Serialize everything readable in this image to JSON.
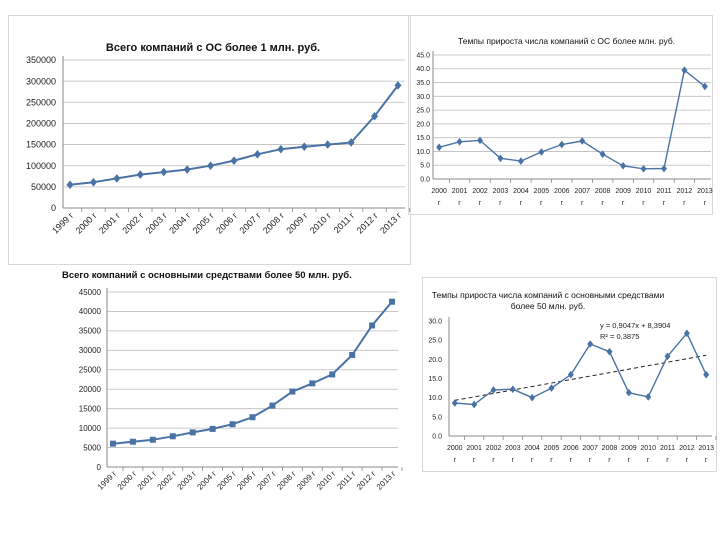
{
  "colors": {
    "line": "#4a73a5",
    "grid": "#bdbdbd",
    "axis": "#888888",
    "trend": "#222222"
  },
  "chart_data": [
    {
      "id": "c1",
      "type": "line",
      "title": "Всего компаний с ОС более 1 млн. руб.",
      "categories": [
        "1999 г",
        "2000 г",
        "2001 г",
        "2002 г",
        "2003 г",
        "2004 г",
        "2005 г",
        "2006 г",
        "2007 г",
        "2008 г",
        "2009 г",
        "2010 г",
        "2011 г",
        "2012 г",
        "2013 г"
      ],
      "values": [
        55000,
        61000,
        70000,
        79000,
        85000,
        91000,
        100000,
        112000,
        127000,
        139000,
        145000,
        150000,
        155000,
        217000,
        290000
      ],
      "ylim": [
        0,
        350000
      ],
      "yticks": [
        "0",
        "50000",
        "100000",
        "150000",
        "200000",
        "250000",
        "300000",
        "350000"
      ],
      "grid": true,
      "marker": "diamond"
    },
    {
      "id": "c2",
      "type": "line",
      "title": "Темпы прироста числа компаний с ОС более млн. руб.",
      "categories": [
        "2000 г",
        "2001 г",
        "2002 г",
        "2003 г",
        "2004 г",
        "2005 г",
        "2006 г",
        "2007 г",
        "2008 г",
        "2009 г",
        "2010 г",
        "2011 г",
        "2012 г",
        "2013 г"
      ],
      "tick_top": [
        "2000",
        "2001",
        "2002",
        "2003",
        "2004",
        "2005",
        "2006",
        "2007",
        "2008",
        "2009",
        "2010",
        "2011",
        "2012",
        "2013"
      ],
      "tick_bottom": [
        "г",
        "г",
        "г",
        "г",
        "г",
        "г",
        "г",
        "г",
        "г",
        "г",
        "г",
        "г",
        "г",
        "г"
      ],
      "values": [
        11.5,
        13.5,
        14.0,
        7.5,
        6.5,
        9.8,
        12.5,
        13.8,
        9.0,
        4.8,
        3.7,
        3.8,
        39.5,
        33.6
      ],
      "ylim": [
        0,
        45
      ],
      "yticks": [
        "0.0",
        "5.0",
        "10.0",
        "15.0",
        "20.0",
        "25.0",
        "30.0",
        "35.0",
        "40.0",
        "45.0"
      ],
      "grid": true,
      "marker": "diamond"
    },
    {
      "id": "c3",
      "type": "line",
      "title": "Всего компаний с основными средствами более 50 млн. руб.",
      "categories": [
        "1999 г",
        "2000 г",
        "2001 г",
        "2002 г",
        "2003 г",
        "2004 г",
        "2005 г",
        "2006 г",
        "2007 г",
        "2008 г",
        "2009 г",
        "2010 г",
        "2011 г",
        "2012 г",
        "2013 г"
      ],
      "values": [
        6000,
        6500,
        7000,
        7900,
        8900,
        9800,
        11000,
        12800,
        15800,
        19400,
        21500,
        23800,
        28800,
        36400,
        42500
      ],
      "ylim": [
        0,
        45000
      ],
      "yticks": [
        "0",
        "5000",
        "10000",
        "15000",
        "20000",
        "25000",
        "30000",
        "35000",
        "40000",
        "45000"
      ],
      "grid": true,
      "marker": "square"
    },
    {
      "id": "c4",
      "type": "line",
      "title": "Темпы прироста числа компаний с основными средствами более 50 млн. руб.",
      "title_lines": [
        "Темпы прироста числа компаний с основными средствами",
        "более 50 млн. руб."
      ],
      "categories": [
        "2000 г",
        "2001 г",
        "2002 г",
        "2003 г",
        "2004 г",
        "2005 г",
        "2006 г",
        "2007 г",
        "2008 г",
        "2009 г",
        "2010 г",
        "2011 г",
        "2012 г",
        "2013 г"
      ],
      "tick_top": [
        "2000",
        "2001",
        "2002",
        "2003",
        "2004",
        "2005",
        "2006",
        "2007",
        "2008",
        "2009",
        "2010",
        "2011",
        "2012",
        "2013"
      ],
      "tick_bottom": [
        "г",
        "г",
        "г",
        "г",
        "г",
        "г",
        "г",
        "г",
        "г",
        "г",
        "г",
        "г",
        "г",
        "г"
      ],
      "values": [
        8.6,
        8.2,
        12.0,
        12.2,
        10.0,
        12.5,
        16.0,
        24.0,
        22.0,
        11.3,
        10.2,
        20.8,
        26.8,
        16.0
      ],
      "ylim": [
        0,
        30
      ],
      "yticks": [
        "0.0",
        "5.0",
        "10.0",
        "15.0",
        "20.0",
        "25.0",
        "30.0"
      ],
      "grid": false,
      "marker": "diamond",
      "trendline": {
        "slope": 0.9047,
        "intercept": 8.3904,
        "equation": "y = 0,9047x + 8,3904",
        "r2": "R² = 0,3875"
      }
    }
  ]
}
